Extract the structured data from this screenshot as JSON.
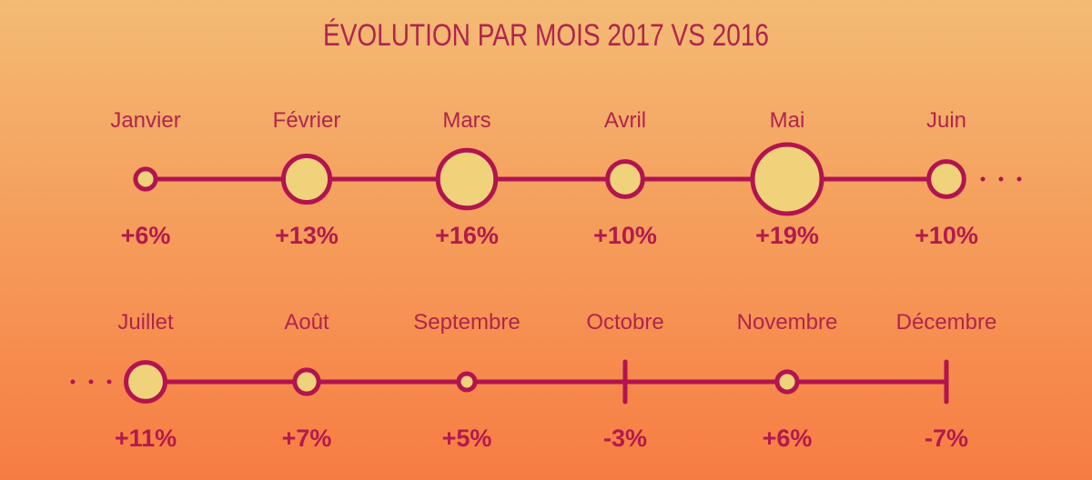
{
  "chart_data": {
    "type": "timeline-bubble",
    "title": "ÉVOLUTION PAR MOIS 2017 VS 2016",
    "colors": {
      "accent": "#b3134f",
      "bubble_fill": "#efd27a",
      "value_text": "#b31a4d",
      "label_text": "#b0244f"
    },
    "rows": [
      {
        "months": [
          "Janvier",
          "Février",
          "Mars",
          "Avril",
          "Mai",
          "Juin"
        ],
        "values": [
          6,
          13,
          16,
          10,
          19,
          10
        ],
        "labels": [
          "+6%",
          "+13%",
          "+16%",
          "+10%",
          "+19%",
          "+10%"
        ]
      },
      {
        "months": [
          "Juillet",
          "Août",
          "Septembre",
          "Octobre",
          "Novembre",
          "Décembre"
        ],
        "values": [
          11,
          7,
          5,
          -3,
          6,
          -7
        ],
        "labels": [
          "+11%",
          "+7%",
          "+5%",
          "-3%",
          "+6%",
          "-7%"
        ]
      }
    ]
  }
}
